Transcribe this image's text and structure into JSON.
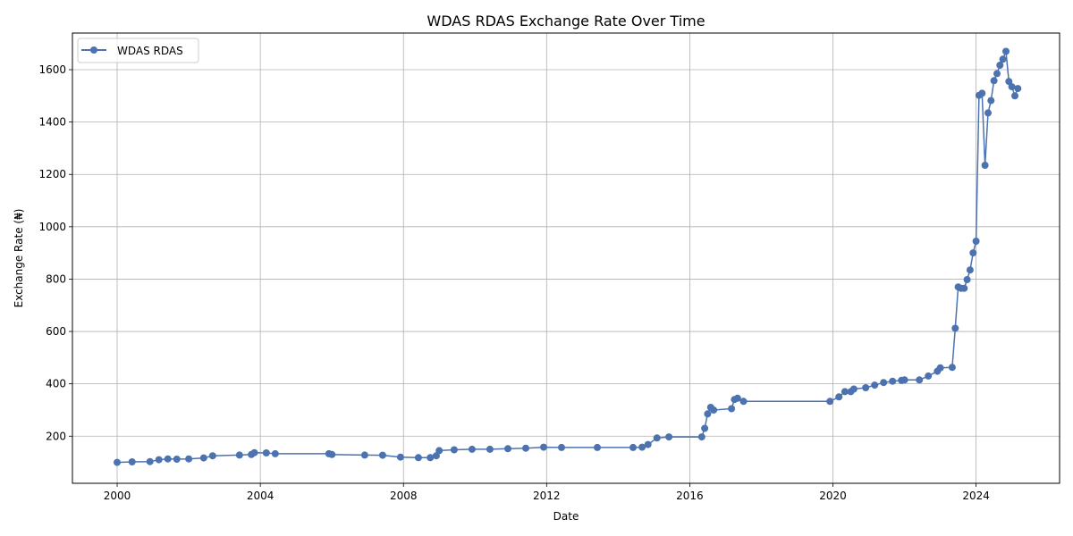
{
  "chart_data": {
    "type": "line",
    "title": "WDAS RDAS Exchange Rate Over Time",
    "xlabel": "Date",
    "ylabel": "Exchange Rate (₦)",
    "xlim": [
      "1998-10-01",
      "2026-05-01"
    ],
    "ylim": [
      20,
      1740
    ],
    "x_ticks": [
      "2000",
      "2004",
      "2008",
      "2012",
      "2016",
      "2020",
      "2024"
    ],
    "y_ticks": [
      200,
      400,
      600,
      800,
      1000,
      1200,
      1400,
      1600
    ],
    "grid": true,
    "legend": "top-left",
    "colors": {
      "series": "#4c72b0",
      "grid": "#b0b0b0"
    },
    "series": [
      {
        "name": "WDAS RDAS",
        "points": [
          [
            "2000-01",
            100
          ],
          [
            "2000-06",
            102
          ],
          [
            "2000-12",
            103
          ],
          [
            "2001-03",
            110
          ],
          [
            "2001-06",
            113
          ],
          [
            "2001-09",
            112
          ],
          [
            "2002-01",
            113
          ],
          [
            "2002-06",
            117
          ],
          [
            "2002-09",
            125
          ],
          [
            "2003-06",
            128
          ],
          [
            "2003-10",
            130
          ],
          [
            "2003-11",
            137
          ],
          [
            "2004-03",
            136
          ],
          [
            "2004-06",
            133
          ],
          [
            "2005-12",
            133
          ],
          [
            "2006-01",
            130
          ],
          [
            "2006-12",
            128
          ],
          [
            "2007-06",
            127
          ],
          [
            "2007-12",
            120
          ],
          [
            "2008-06",
            118
          ],
          [
            "2008-10",
            118
          ],
          [
            "2008-12",
            125
          ],
          [
            "2009-01",
            145
          ],
          [
            "2009-06",
            148
          ],
          [
            "2009-12",
            150
          ],
          [
            "2010-06",
            150
          ],
          [
            "2010-12",
            152
          ],
          [
            "2011-06",
            154
          ],
          [
            "2011-12",
            158
          ],
          [
            "2012-06",
            157
          ],
          [
            "2013-06",
            157
          ],
          [
            "2014-06",
            157
          ],
          [
            "2014-09",
            158
          ],
          [
            "2014-11",
            168
          ],
          [
            "2015-02",
            193
          ],
          [
            "2015-06",
            197
          ],
          [
            "2016-05",
            197
          ],
          [
            "2016-06",
            230
          ],
          [
            "2016-07",
            285
          ],
          [
            "2016-08",
            310
          ],
          [
            "2016-09",
            300
          ],
          [
            "2017-03",
            305
          ],
          [
            "2017-04",
            340
          ],
          [
            "2017-05",
            345
          ],
          [
            "2017-07",
            333
          ],
          [
            "2019-12",
            333
          ],
          [
            "2020-03",
            350
          ],
          [
            "2020-05",
            370
          ],
          [
            "2020-07",
            370
          ],
          [
            "2020-08",
            380
          ],
          [
            "2020-12",
            385
          ],
          [
            "2021-03",
            395
          ],
          [
            "2021-06",
            405
          ],
          [
            "2021-09",
            410
          ],
          [
            "2021-12",
            413
          ],
          [
            "2022-01",
            415
          ],
          [
            "2022-06",
            415
          ],
          [
            "2022-09",
            430
          ],
          [
            "2022-12",
            448
          ],
          [
            "2023-01",
            461
          ],
          [
            "2023-05",
            463
          ],
          [
            "2023-06",
            612
          ],
          [
            "2023-07",
            770
          ],
          [
            "2023-08",
            765
          ],
          [
            "2023-09",
            765
          ],
          [
            "2023-10",
            798
          ],
          [
            "2023-11",
            835
          ],
          [
            "2023-12",
            900
          ],
          [
            "2024-01",
            945
          ],
          [
            "2024-02",
            1502
          ],
          [
            "2024-03",
            1510
          ],
          [
            "2024-04",
            1235
          ],
          [
            "2024-05",
            1435
          ],
          [
            "2024-06",
            1482
          ],
          [
            "2024-07",
            1558
          ],
          [
            "2024-08",
            1585
          ],
          [
            "2024-09",
            1617
          ],
          [
            "2024-10",
            1640
          ],
          [
            "2024-11",
            1670
          ],
          [
            "2024-12",
            1555
          ],
          [
            "2025-01",
            1535
          ],
          [
            "2025-02",
            1500
          ],
          [
            "2025-03",
            1528
          ]
        ]
      }
    ]
  }
}
